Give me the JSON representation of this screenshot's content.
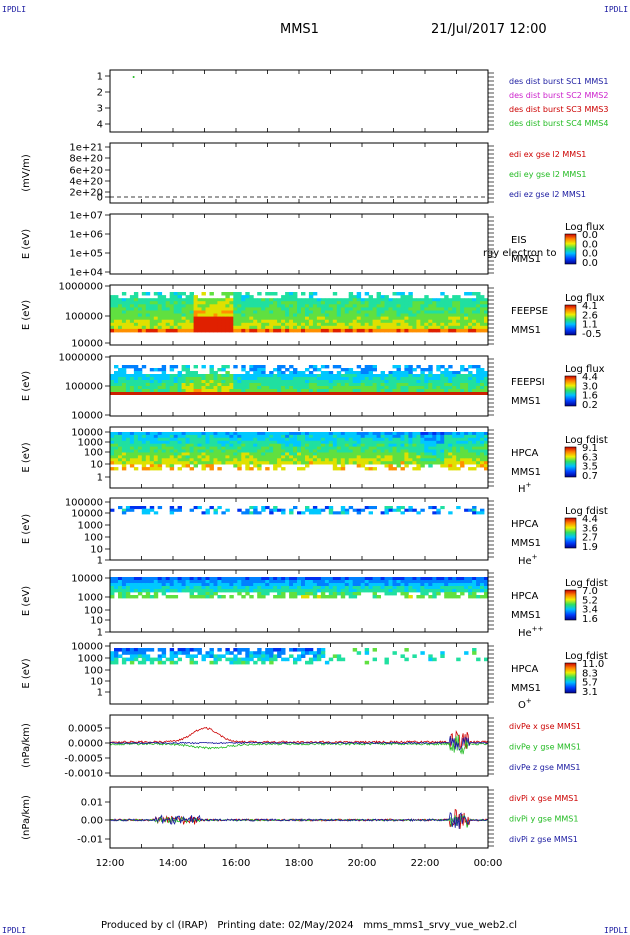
{
  "header": {
    "corner_label": "IPDLI",
    "spacecraft": "MMS1",
    "datetime": "21/Jul/2017 12:00"
  },
  "footer": {
    "text": "Produced by cl (IRAP)   Printing date: 02/May/2024   mms_mms1_srvy_vue_web2.cl"
  },
  "colors": {
    "blue": "#1a1aa0",
    "magenta": "#cc22cc",
    "red": "#cc0000",
    "green": "#22bb22",
    "label_blue": "#0000aa"
  },
  "chart_data": [
    {
      "type": "scatter",
      "id": "dist-burst",
      "ylabel": "",
      "ylim": [
        0.5,
        4.5
      ],
      "yticks": [
        "1",
        "2",
        "3",
        "4"
      ],
      "points": [
        {
          "x": 12.75,
          "y": 4.05
        }
      ],
      "legend": [
        {
          "text": "des dist burst SC1 MMS1",
          "color": "#1a1aa0"
        },
        {
          "text": "des dist burst SC2 MMS2",
          "color": "#cc22cc"
        },
        {
          "text": "des dist burst SC3 MMS3",
          "color": "#cc0000"
        },
        {
          "text": "des dist burst SC4 MMS4",
          "color": "#22bb22"
        }
      ]
    },
    {
      "type": "line",
      "id": "edi-e",
      "ylabel": "(mV/m)",
      "yticks": [
        "1e+21",
        "8e+20",
        "6e+20",
        "4e+20",
        "2e+20",
        "0"
      ],
      "legend": [
        {
          "text": "edi ex gse l2 MMS1",
          "color": "#cc0000"
        },
        {
          "text": "edi ey gse l2 MMS1",
          "color": "#22bb22"
        },
        {
          "text": "edi ez gse l2 MMS1",
          "color": "#1a1aa0"
        }
      ]
    },
    {
      "type": "heatmap",
      "id": "eis",
      "ylabel": "E (eV)",
      "yticks": [
        "1e+07",
        "1e+06",
        "1e+05",
        "1e+04"
      ],
      "labels": [
        "EIS",
        "MMS1"
      ],
      "overlay": "rgy electron to",
      "colorbar": {
        "title": "Log flux",
        "ticks": [
          "0.0",
          "0.0",
          "0.0",
          "0.0"
        ]
      }
    },
    {
      "type": "heatmap",
      "id": "feepse",
      "ylabel": "E (eV)",
      "yticks": [
        "1000000",
        "100000",
        "10000"
      ],
      "labels": [
        "FEEPSE",
        "MMS1"
      ],
      "colorbar": {
        "title": "Log flux",
        "ticks": [
          "4.1",
          "2.6",
          "1.1",
          "-0.5"
        ]
      }
    },
    {
      "type": "heatmap",
      "id": "feepsi",
      "ylabel": "E (eV)",
      "yticks": [
        "1000000",
        "100000",
        "10000"
      ],
      "labels": [
        "FEEPSI",
        "MMS1"
      ],
      "colorbar": {
        "title": "Log flux",
        "ticks": [
          "4.4",
          "3.0",
          "1.6",
          "0.2"
        ]
      }
    },
    {
      "type": "heatmap",
      "id": "hpca-h",
      "ylabel": "E (eV)",
      "yticks": [
        "10000",
        "1000",
        "100",
        "10",
        "1"
      ],
      "labels": [
        "HPCA",
        "MMS1"
      ],
      "species": "H",
      "species_sup": "+",
      "colorbar": {
        "title": "Log fdist",
        "ticks": [
          "9.1",
          "6.3",
          "3.5",
          "0.7"
        ]
      }
    },
    {
      "type": "heatmap",
      "id": "hpca-he",
      "ylabel": "E (eV)",
      "yticks": [
        "100000",
        "10000",
        "1000",
        "100",
        "10",
        "1"
      ],
      "labels": [
        "HPCA",
        "MMS1"
      ],
      "species": "He",
      "species_sup": "+",
      "colorbar": {
        "title": "Log fdist",
        "ticks": [
          "4.4",
          "3.6",
          "2.7",
          "1.9"
        ]
      }
    },
    {
      "type": "heatmap",
      "id": "hpca-hepp",
      "ylabel": "E (eV)",
      "yticks": [
        "10000",
        "1000",
        "100",
        "10",
        "1"
      ],
      "labels": [
        "HPCA",
        "MMS1"
      ],
      "species": "He",
      "species_sup": "++",
      "colorbar": {
        "title": "Log fdist",
        "ticks": [
          "7.0",
          "5.2",
          "3.4",
          "1.6"
        ]
      }
    },
    {
      "type": "heatmap",
      "id": "hpca-o",
      "ylabel": "E (eV)",
      "yticks": [
        "10000",
        "1000",
        "100",
        "10",
        "1"
      ],
      "labels": [
        "HPCA",
        "MMS1"
      ],
      "species": "O",
      "species_sup": "+",
      "colorbar": {
        "title": "Log fdist",
        "ticks": [
          "11.0",
          "8.3",
          "5.7",
          "3.1"
        ]
      }
    },
    {
      "type": "line",
      "id": "divpe",
      "ylabel": "(nPa/km)",
      "yticks": [
        "0.0005",
        "0.0000",
        "-0.0005",
        "-0.0010"
      ],
      "ylim": [
        -0.00105,
        0.001
      ],
      "legend": [
        {
          "text": "divPe x gse MMS1",
          "color": "#cc0000"
        },
        {
          "text": "divPe y gse MMS1",
          "color": "#22bb22"
        },
        {
          "text": "divPe z gse MMS1",
          "color": "#1a1aa0"
        }
      ]
    },
    {
      "type": "line",
      "id": "divpi",
      "ylabel": "(nPa/km)",
      "yticks": [
        "0.01",
        "0.00",
        "-0.01"
      ],
      "ylim": [
        -0.0125,
        0.0125
      ],
      "legend": [
        {
          "text": "divPi x gse MMS1",
          "color": "#cc0000"
        },
        {
          "text": "divPi y gse MMS1",
          "color": "#22bb22"
        },
        {
          "text": "divPi z gse MMS1",
          "color": "#1a1aa0"
        }
      ]
    }
  ],
  "xaxis": {
    "range_hours": [
      12,
      24
    ],
    "ticks": [
      "12:00",
      "14:00",
      "16:00",
      "18:00",
      "20:00",
      "22:00",
      "00:00"
    ]
  }
}
